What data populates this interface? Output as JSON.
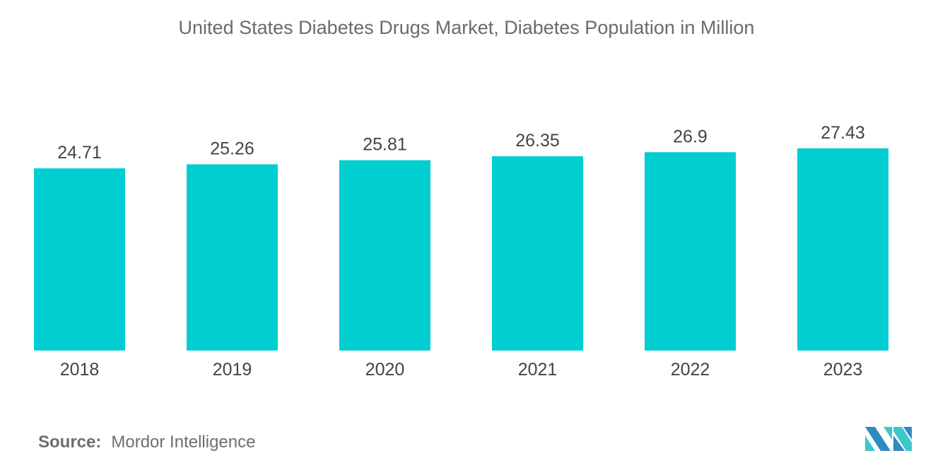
{
  "chart_data": {
    "type": "bar",
    "title": "United States Diabetes Drugs Market, Diabetes Population in Million",
    "categories": [
      "2018",
      "2019",
      "2020",
      "2021",
      "2022",
      "2023"
    ],
    "values": [
      24.71,
      25.26,
      25.81,
      26.35,
      26.9,
      27.43
    ],
    "value_labels": [
      "24.71",
      "25.26",
      "25.81",
      "26.35",
      "26.9",
      "27.43"
    ],
    "xlabel": "",
    "ylabel": "",
    "ylim": [
      0,
      30
    ],
    "grid": false,
    "y_axis_visible": false,
    "bar_color": "#00CED1"
  },
  "source": {
    "label": "Source:",
    "text": "Mordor Intelligence"
  },
  "logo": {
    "colors": [
      "#2E8BC0",
      "#3CC8C8"
    ]
  }
}
